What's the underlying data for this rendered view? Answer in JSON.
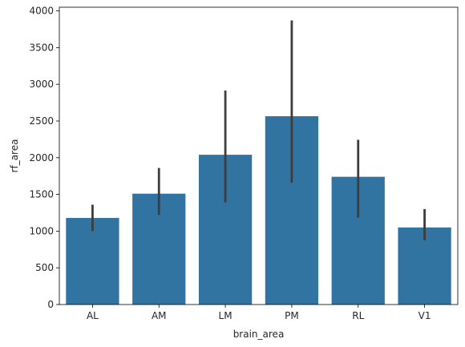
{
  "chart_data": {
    "type": "bar",
    "categories": [
      "AL",
      "AM",
      "LM",
      "PM",
      "RL",
      "V1"
    ],
    "values": [
      1180,
      1510,
      2040,
      2565,
      1740,
      1050
    ],
    "error_low": [
      1000,
      1220,
      1390,
      1660,
      1185,
      875
    ],
    "error_high": [
      1360,
      1860,
      2915,
      3870,
      2245,
      1300
    ],
    "title": "",
    "xlabel": "brain_area",
    "ylabel": "rf_area",
    "ylim": [
      0,
      4050
    ],
    "yticks": [
      0,
      500,
      1000,
      1500,
      2000,
      2500,
      3000,
      3500,
      4000
    ],
    "ytick_labels": [
      "0",
      "500",
      "1000",
      "1500",
      "2000",
      "2500",
      "3000",
      "3500",
      "4000"
    ],
    "grid": false,
    "bar_color": "#3274a1",
    "errorbar_color": "#3d3d3d"
  }
}
